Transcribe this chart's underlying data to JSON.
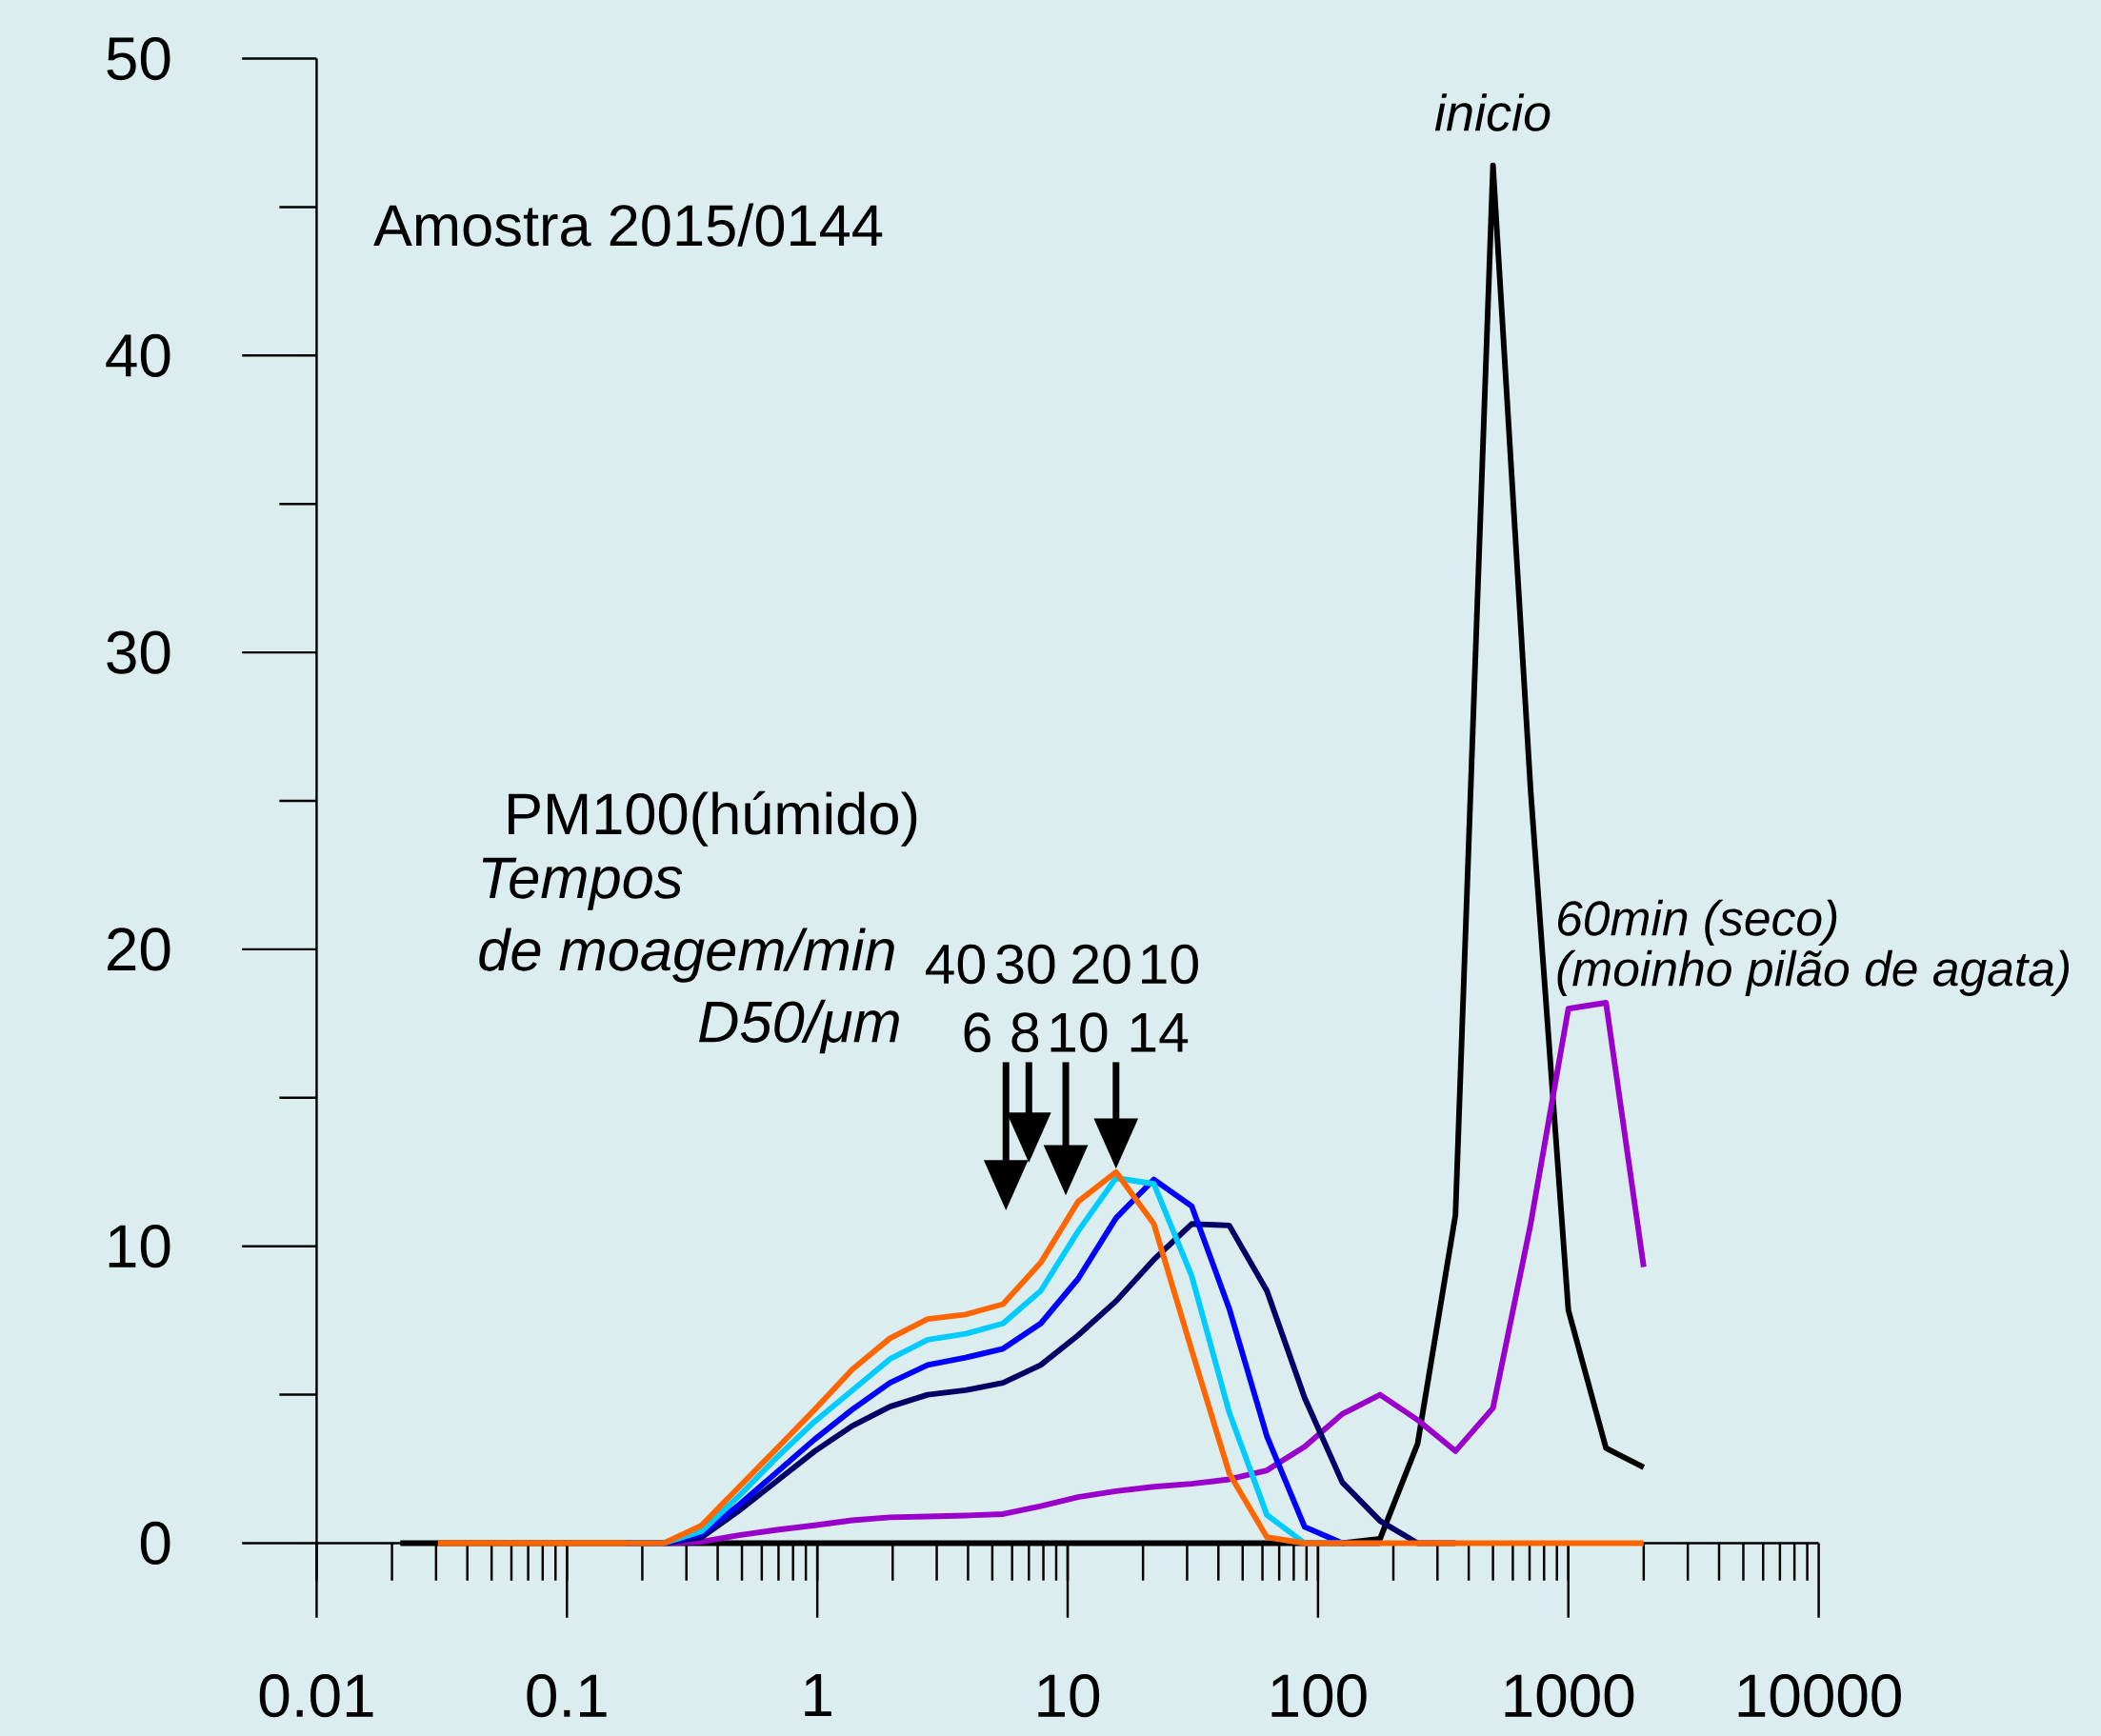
{
  "chart_data": {
    "type": "line",
    "log": "x",
    "xlim": [
      0.01,
      10000
    ],
    "ylim": [
      0,
      50
    ],
    "xticks": [
      0.01,
      0.1,
      1,
      10,
      100,
      1000,
      10000
    ],
    "yticks": [
      0,
      10,
      20,
      30,
      40,
      50
    ],
    "x": [
      0.0305,
      0.0432,
      0.061,
      0.0863,
      0.122,
      0.173,
      0.244,
      0.345,
      0.488,
      0.691,
      0.977,
      1.38,
      1.95,
      2.76,
      3.91,
      5.52,
      7.81,
      11.0,
      15.6,
      22.1,
      31.3,
      44.2,
      62.5,
      88.4,
      125,
      177,
      250,
      354,
      500,
      707,
      1000,
      1414,
      2000
    ],
    "series": [
      {
        "name": "inicio",
        "color": "#000000",
        "x": [
          0.0216,
          0.0305,
          0.0432,
          0.061,
          0.0863,
          0.122,
          0.173,
          0.244,
          0.345,
          0.488,
          0.691,
          0.977,
          1.38,
          1.95,
          2.76,
          3.91,
          5.52,
          7.81,
          11.0,
          15.6,
          22.1,
          31.3,
          44.2,
          62.5,
          88.4,
          125,
          177,
          250,
          354,
          500,
          707,
          1000,
          1414,
          2000
        ],
        "values": [
          0,
          0,
          0,
          0,
          0,
          0,
          0,
          0,
          0,
          0,
          0,
          0,
          0,
          0,
          0,
          0,
          0,
          0,
          0,
          0,
          0,
          0,
          0,
          0,
          0,
          0,
          0.15,
          3.35,
          11.05,
          46.4,
          25.35,
          7.85,
          3.2,
          2.55
        ]
      },
      {
        "color": "#9900cc",
        "values": [
          null,
          null,
          null,
          null,
          null,
          0,
          0,
          0.05,
          0.27,
          0.45,
          0.6,
          0.77,
          0.87,
          0.9,
          0.93,
          0.98,
          1.25,
          1.55,
          1.75,
          1.9,
          2.0,
          2.15,
          2.45,
          3.25,
          4.35,
          5.0,
          4.15,
          3.1,
          4.55,
          10.75,
          18.0,
          18.2,
          9.3
        ]
      },
      {
        "color": "#000066",
        "values": [
          null,
          null,
          null,
          null,
          null,
          0,
          0,
          0.2,
          1.1,
          2.1,
          3.1,
          3.95,
          4.6,
          5.0,
          5.15,
          5.4,
          6.0,
          7.0,
          8.15,
          9.55,
          10.75,
          10.7,
          8.5,
          4.9,
          2.05,
          0.75,
          0,
          0,
          null,
          null,
          null,
          null,
          null
        ]
      },
      {
        "color": "#0000ff",
        "values": [
          null,
          null,
          null,
          null,
          null,
          0,
          0,
          0.3,
          1.3,
          2.4,
          3.5,
          4.5,
          5.4,
          6.0,
          6.25,
          6.55,
          7.4,
          8.9,
          10.95,
          12.25,
          11.35,
          7.9,
          3.6,
          0.55,
          0,
          0,
          null,
          null,
          null,
          null,
          null,
          null,
          null
        ]
      },
      {
        "color": "#00ccff",
        "values": [
          null,
          null,
          null,
          null,
          null,
          0,
          0,
          0.4,
          1.6,
          2.9,
          4.1,
          5.15,
          6.2,
          6.85,
          7.05,
          7.4,
          8.5,
          10.5,
          12.3,
          12.1,
          9.0,
          4.4,
          0.95,
          0,
          0,
          null,
          null,
          null,
          null,
          null,
          null,
          null,
          null
        ]
      },
      {
        "color": "#ff6600",
        "values": [
          0,
          0,
          0,
          0,
          0,
          0,
          0,
          0.6,
          1.9,
          3.2,
          4.5,
          5.85,
          6.9,
          7.55,
          7.7,
          8.05,
          9.45,
          11.5,
          12.5,
          10.75,
          6.5,
          2.35,
          0.2,
          0,
          0,
          0,
          0,
          0,
          0,
          0,
          0,
          0,
          0
        ]
      }
    ],
    "annotations": [
      "Amostra 2015/0144",
      "PM100(húmido)",
      "Tempos",
      "de moagem/min",
      "D50/μm",
      "40",
      "30",
      "20",
      "10",
      "60min (seco)",
      "(moinho pilão de agata)",
      "6",
      "8",
      "10",
      "14"
    ]
  }
}
